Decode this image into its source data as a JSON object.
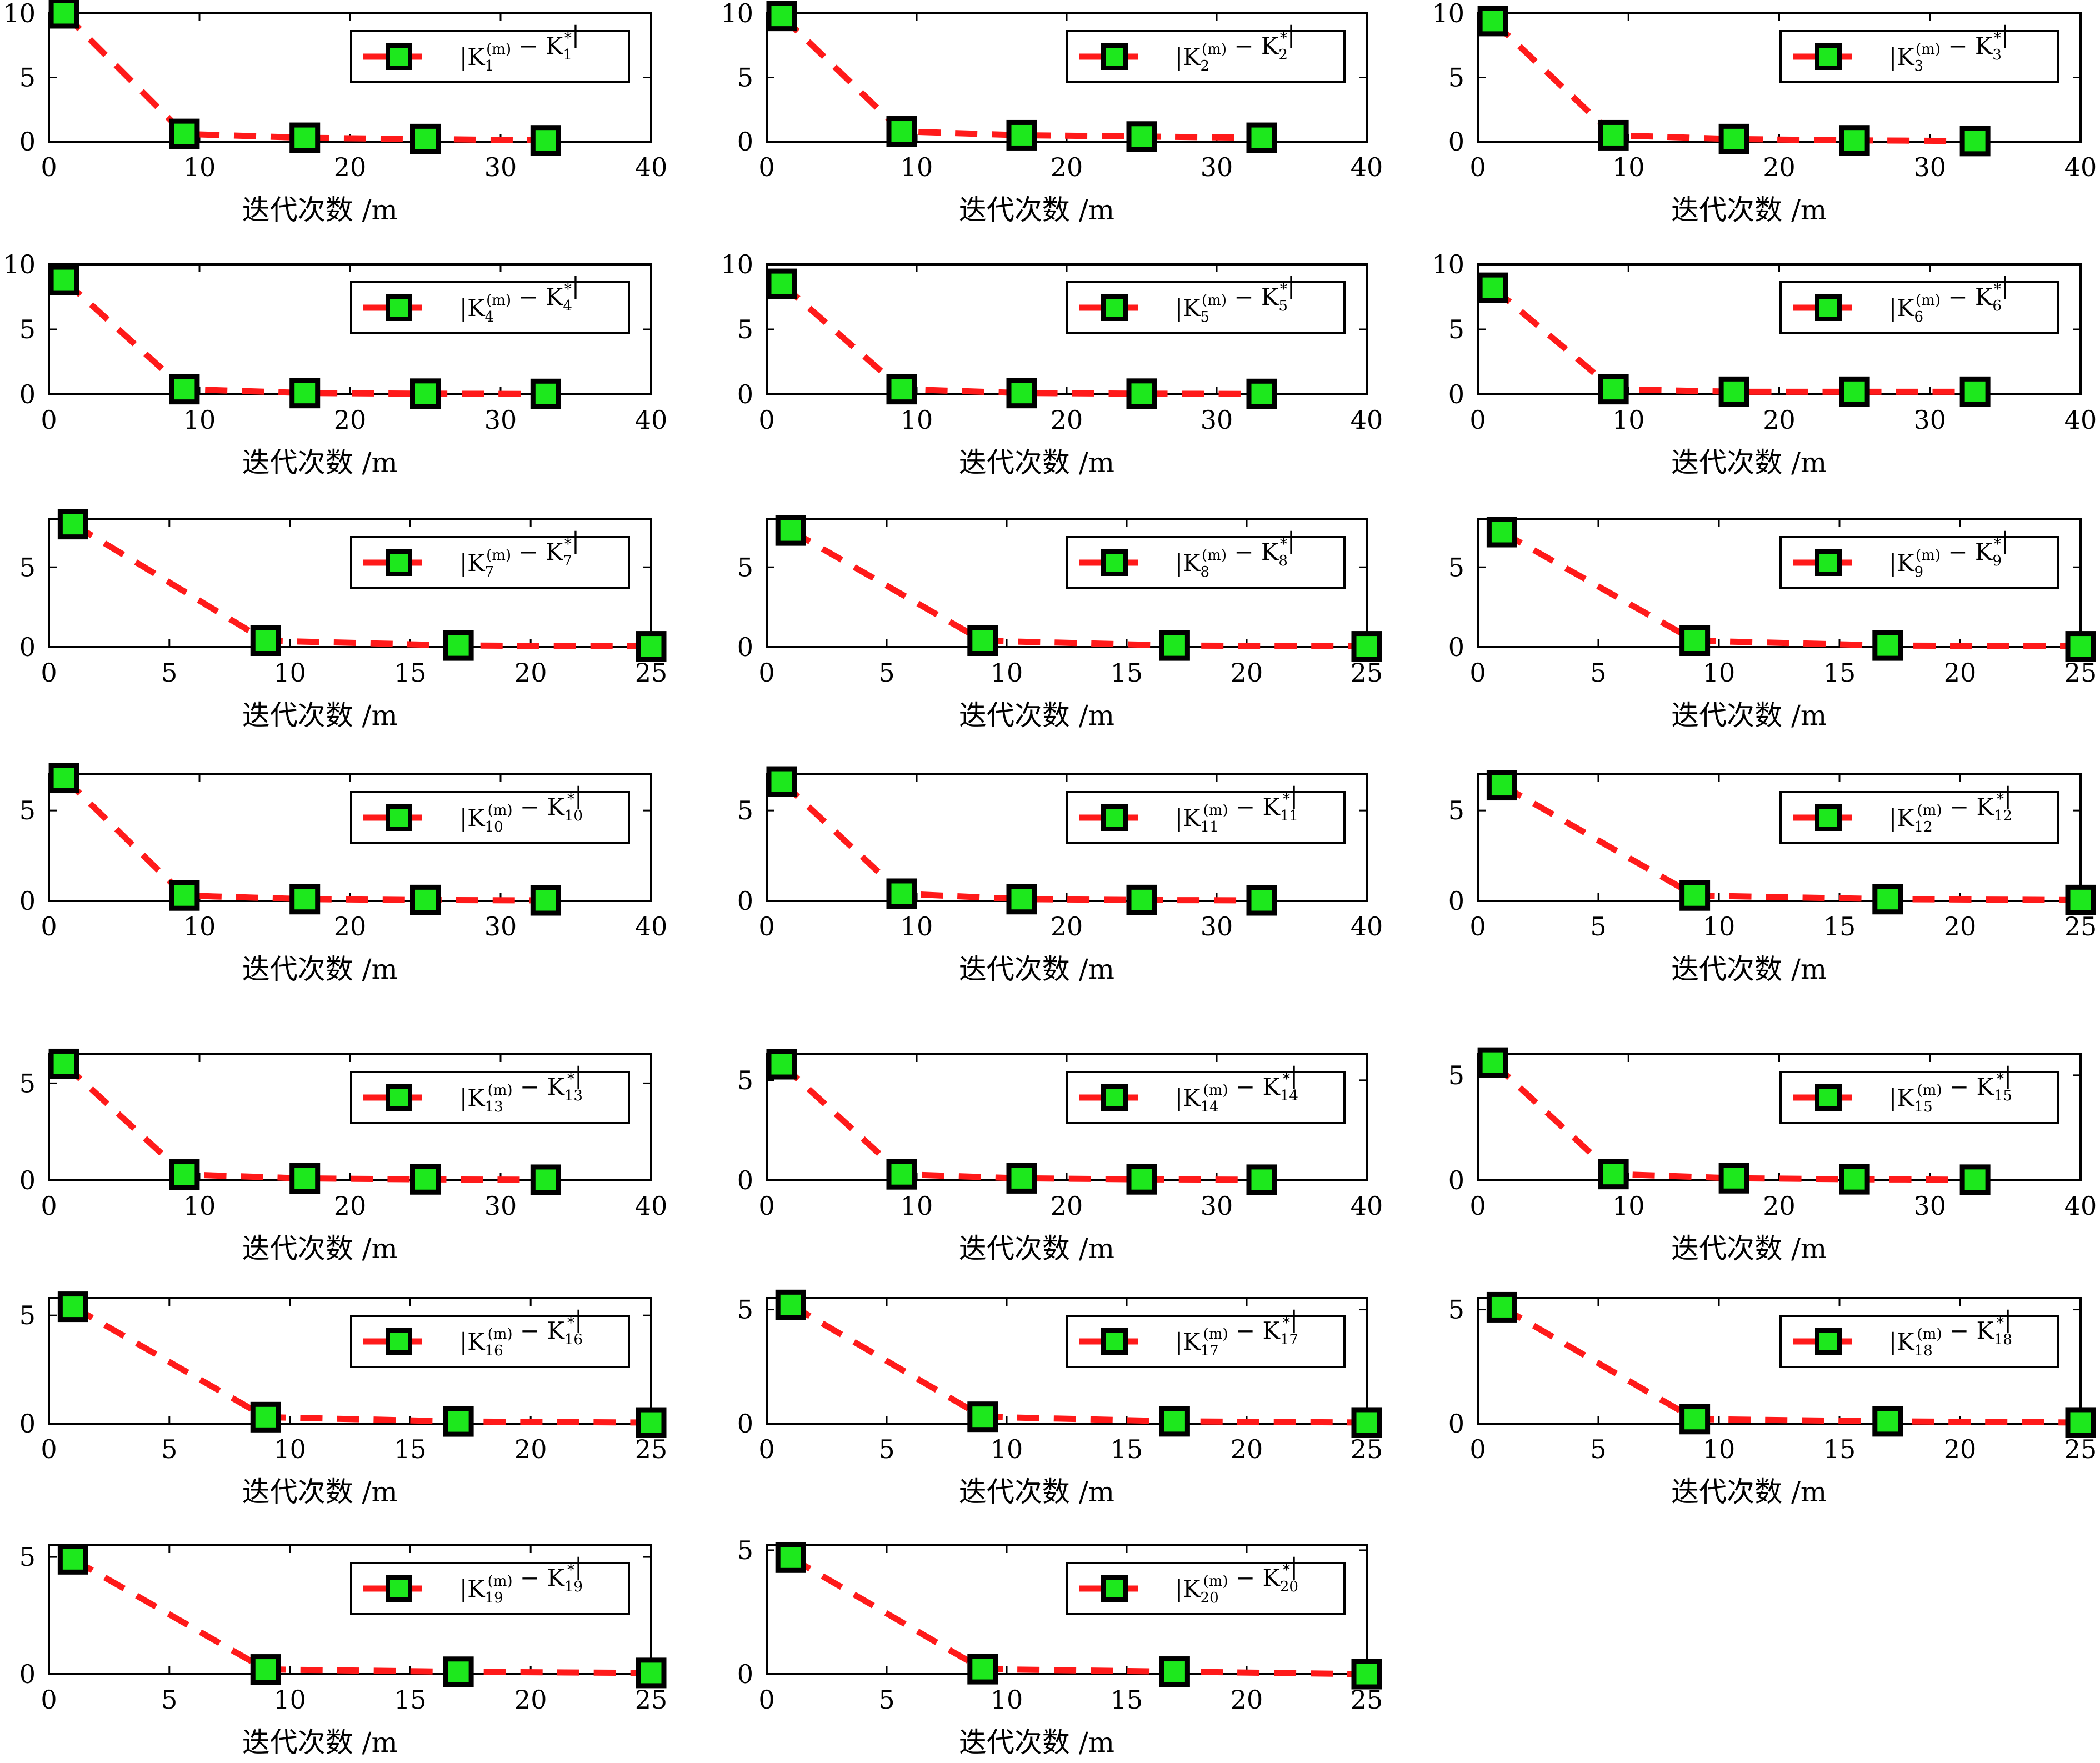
{
  "colors": {
    "line": "#ff1a1a",
    "marker_fill": "#1de81d",
    "marker_edge": "#000000",
    "axes": "#000000",
    "background": "#ffffff"
  },
  "shared": {
    "xlabel": "迭代次数 /m",
    "x": [
      1,
      9,
      17,
      25,
      33
    ],
    "legend_template": "|K_i^(m) − K_i^*|",
    "legend_position": "top-right",
    "line_style": "dashed",
    "marker": "square"
  },
  "chart_data": [
    {
      "index": 1,
      "type": "line",
      "xlabel": "迭代次数 /m",
      "legend": "|K1(m) − K1*|",
      "legend_sub": "1",
      "x": [
        1,
        9,
        17,
        25,
        33
      ],
      "values": [
        10.0,
        0.6,
        0.3,
        0.2,
        0.1
      ],
      "xlim": [
        0,
        40
      ],
      "ylim": [
        0,
        10
      ],
      "xticks": [
        0,
        10,
        20,
        30,
        40
      ],
      "yticks": [
        0,
        5,
        10
      ]
    },
    {
      "index": 2,
      "type": "line",
      "xlabel": "迭代次数 /m",
      "legend": "|K2(m) − K2*|",
      "legend_sub": "2",
      "x": [
        1,
        9,
        17,
        25,
        33
      ],
      "values": [
        9.8,
        0.8,
        0.5,
        0.4,
        0.3
      ],
      "xlim": [
        0,
        40
      ],
      "ylim": [
        0,
        10
      ],
      "xticks": [
        0,
        10,
        20,
        30,
        40
      ],
      "yticks": [
        0,
        5,
        10
      ]
    },
    {
      "index": 3,
      "type": "line",
      "xlabel": "迭代次数 /m",
      "legend": "|K3(m) − K3*|",
      "legend_sub": "3",
      "x": [
        1,
        9,
        17,
        25,
        33
      ],
      "values": [
        9.4,
        0.5,
        0.2,
        0.1,
        0.05
      ],
      "xlim": [
        0,
        40
      ],
      "ylim": [
        0,
        10
      ],
      "xticks": [
        0,
        10,
        20,
        30,
        40
      ],
      "yticks": [
        0,
        5,
        10
      ]
    },
    {
      "index": 4,
      "type": "line",
      "xlabel": "迭代次数 /m",
      "legend": "|K4(m) − K4*|",
      "legend_sub": "4",
      "x": [
        1,
        9,
        17,
        25,
        33
      ],
      "values": [
        8.8,
        0.4,
        0.1,
        0.05,
        0.03
      ],
      "xlim": [
        0,
        40
      ],
      "ylim": [
        0,
        10
      ],
      "xticks": [
        0,
        10,
        20,
        30,
        40
      ],
      "yticks": [
        0,
        5,
        10
      ]
    },
    {
      "index": 5,
      "type": "line",
      "xlabel": "迭代次数 /m",
      "legend": "|K5(m) − K5*|",
      "legend_sub": "5",
      "x": [
        1,
        9,
        17,
        25,
        33
      ],
      "values": [
        8.5,
        0.4,
        0.1,
        0.05,
        0.03
      ],
      "xlim": [
        0,
        40
      ],
      "ylim": [
        0,
        10
      ],
      "xticks": [
        0,
        10,
        20,
        30,
        40
      ],
      "yticks": [
        0,
        5,
        10
      ]
    },
    {
      "index": 6,
      "type": "line",
      "xlabel": "迭代次数 /m",
      "legend": "|K6(m) − K6*|",
      "legend_sub": "6",
      "x": [
        1,
        9,
        17,
        25,
        33
      ],
      "values": [
        8.2,
        0.4,
        0.2,
        0.2,
        0.2
      ],
      "xlim": [
        0,
        40
      ],
      "ylim": [
        0,
        10
      ],
      "xticks": [
        0,
        10,
        20,
        30,
        40
      ],
      "yticks": [
        0,
        5,
        10
      ]
    },
    {
      "index": 7,
      "type": "line",
      "xlabel": "迭代次数 /m",
      "legend": "|K7(m) − K7*|",
      "legend_sub": "7",
      "x": [
        1,
        9,
        17,
        25
      ],
      "values": [
        7.7,
        0.4,
        0.1,
        0.05
      ],
      "xlim": [
        0,
        25
      ],
      "ylim": [
        0,
        8
      ],
      "xticks": [
        0,
        5,
        10,
        15,
        20,
        25
      ],
      "yticks": [
        0,
        5
      ]
    },
    {
      "index": 8,
      "type": "line",
      "xlabel": "迭代次数 /m",
      "legend": "|K8(m) − K8*|",
      "legend_sub": "8",
      "x": [
        1,
        9,
        17,
        25
      ],
      "values": [
        7.3,
        0.4,
        0.1,
        0.05
      ],
      "xlim": [
        0,
        25
      ],
      "ylim": [
        0,
        8
      ],
      "xticks": [
        0,
        5,
        10,
        15,
        20,
        25
      ],
      "yticks": [
        0,
        5
      ]
    },
    {
      "index": 9,
      "type": "line",
      "xlabel": "迭代次数 /m",
      "legend": "|K9(m) − K9*|",
      "legend_sub": "9",
      "x": [
        1,
        9,
        17,
        25
      ],
      "values": [
        7.2,
        0.4,
        0.1,
        0.05
      ],
      "xlim": [
        0,
        25
      ],
      "ylim": [
        0,
        8
      ],
      "xticks": [
        0,
        5,
        10,
        15,
        20,
        25
      ],
      "yticks": [
        0,
        5
      ]
    },
    {
      "index": 10,
      "type": "line",
      "xlabel": "迭代次数 /m",
      "legend": "|K10(m) − K10*|",
      "legend_sub": "10",
      "x": [
        1,
        9,
        17,
        25,
        33
      ],
      "values": [
        6.8,
        0.3,
        0.1,
        0.05,
        0.03
      ],
      "xlim": [
        0,
        40
      ],
      "ylim": [
        0,
        7
      ],
      "xticks": [
        0,
        10,
        20,
        30,
        40
      ],
      "yticks": [
        0,
        5
      ]
    },
    {
      "index": 11,
      "type": "line",
      "xlabel": "迭代次数 /m",
      "legend": "|K11(m) − K11*|",
      "legend_sub": "11",
      "x": [
        1,
        9,
        17,
        25,
        33
      ],
      "values": [
        6.6,
        0.4,
        0.1,
        0.05,
        0.03
      ],
      "xlim": [
        0,
        40
      ],
      "ylim": [
        0,
        7
      ],
      "xticks": [
        0,
        10,
        20,
        30,
        40
      ],
      "yticks": [
        0,
        5
      ]
    },
    {
      "index": 12,
      "type": "line",
      "xlabel": "迭代次数 /m",
      "legend": "|K12(m) − K12*|",
      "legend_sub": "12",
      "x": [
        1,
        9,
        17,
        25
      ],
      "values": [
        6.4,
        0.3,
        0.1,
        0.05
      ],
      "xlim": [
        0,
        25
      ],
      "ylim": [
        0,
        7
      ],
      "xticks": [
        0,
        5,
        10,
        15,
        20,
        25
      ],
      "yticks": [
        0,
        5
      ]
    },
    {
      "index": 13,
      "type": "line",
      "xlabel": "迭代次数 /m",
      "legend": "|K13(m) − K13*|",
      "legend_sub": "13",
      "x": [
        1,
        9,
        17,
        25,
        33
      ],
      "values": [
        6.0,
        0.3,
        0.1,
        0.05,
        0.03
      ],
      "xlim": [
        0,
        40
      ],
      "ylim": [
        0,
        6.5
      ],
      "xticks": [
        0,
        10,
        20,
        30,
        40
      ],
      "yticks": [
        0,
        5
      ]
    },
    {
      "index": 14,
      "type": "line",
      "xlabel": "迭代次数 /m",
      "legend": "|K14(m) − K14*|",
      "legend_sub": "14",
      "x": [
        1,
        9,
        17,
        25,
        33
      ],
      "values": [
        5.8,
        0.3,
        0.1,
        0.05,
        0.03
      ],
      "xlim": [
        0,
        40
      ],
      "ylim": [
        0,
        6.3
      ],
      "xticks": [
        0,
        10,
        20,
        30,
        40
      ],
      "yticks": [
        0,
        5
      ]
    },
    {
      "index": 15,
      "type": "line",
      "xlabel": "迭代次数 /m",
      "legend": "|K15(m) − K15*|",
      "legend_sub": "15",
      "x": [
        1,
        9,
        17,
        25,
        33
      ],
      "values": [
        5.6,
        0.3,
        0.1,
        0.05,
        0.03
      ],
      "xlim": [
        0,
        40
      ],
      "ylim": [
        0,
        6
      ],
      "xticks": [
        0,
        10,
        20,
        30,
        40
      ],
      "yticks": [
        0,
        5
      ]
    },
    {
      "index": 16,
      "type": "line",
      "xlabel": "迭代次数 /m",
      "legend": "|K16(m) − K16*|",
      "legend_sub": "16",
      "x": [
        1,
        9,
        17,
        25
      ],
      "values": [
        5.4,
        0.3,
        0.1,
        0.05
      ],
      "xlim": [
        0,
        25
      ],
      "ylim": [
        0,
        5.8
      ],
      "xticks": [
        0,
        5,
        10,
        15,
        20,
        25
      ],
      "yticks": [
        0,
        5
      ]
    },
    {
      "index": 17,
      "type": "line",
      "xlabel": "迭代次数 /m",
      "legend": "|K17(m) − K17*|",
      "legend_sub": "17",
      "x": [
        1,
        9,
        17,
        25
      ],
      "values": [
        5.2,
        0.3,
        0.1,
        0.05
      ],
      "xlim": [
        0,
        25
      ],
      "ylim": [
        0,
        5.5
      ],
      "xticks": [
        0,
        5,
        10,
        15,
        20,
        25
      ],
      "yticks": [
        0,
        5
      ]
    },
    {
      "index": 18,
      "type": "line",
      "xlabel": "迭代次数 /m",
      "legend": "|K18(m) − K18*|",
      "legend_sub": "18",
      "x": [
        1,
        9,
        17,
        25
      ],
      "values": [
        5.1,
        0.2,
        0.1,
        0.05
      ],
      "xlim": [
        0,
        25
      ],
      "ylim": [
        0,
        5.5
      ],
      "xticks": [
        0,
        5,
        10,
        15,
        20,
        25
      ],
      "yticks": [
        0,
        5
      ]
    },
    {
      "index": 19,
      "type": "line",
      "xlabel": "迭代次数 /m",
      "legend": "|K19(m) − K19*|",
      "legend_sub": "19",
      "x": [
        1,
        9,
        17,
        25
      ],
      "values": [
        4.9,
        0.2,
        0.1,
        0.05
      ],
      "xlim": [
        0,
        25
      ],
      "ylim": [
        0,
        5.5
      ],
      "xticks": [
        0,
        5,
        10,
        15,
        20,
        25
      ],
      "yticks": [
        0,
        5
      ]
    },
    {
      "index": 20,
      "type": "line",
      "xlabel": "迭代次数 /m",
      "legend": "|K20(m) − K20*|",
      "legend_sub": "20",
      "x": [
        1,
        9,
        17,
        25
      ],
      "values": [
        4.7,
        0.2,
        0.1,
        0.0
      ],
      "xlim": [
        0,
        25
      ],
      "ylim": [
        0,
        5.2
      ],
      "xticks": [
        0,
        5,
        10,
        15,
        20,
        25
      ],
      "yticks": [
        0,
        5
      ]
    }
  ]
}
